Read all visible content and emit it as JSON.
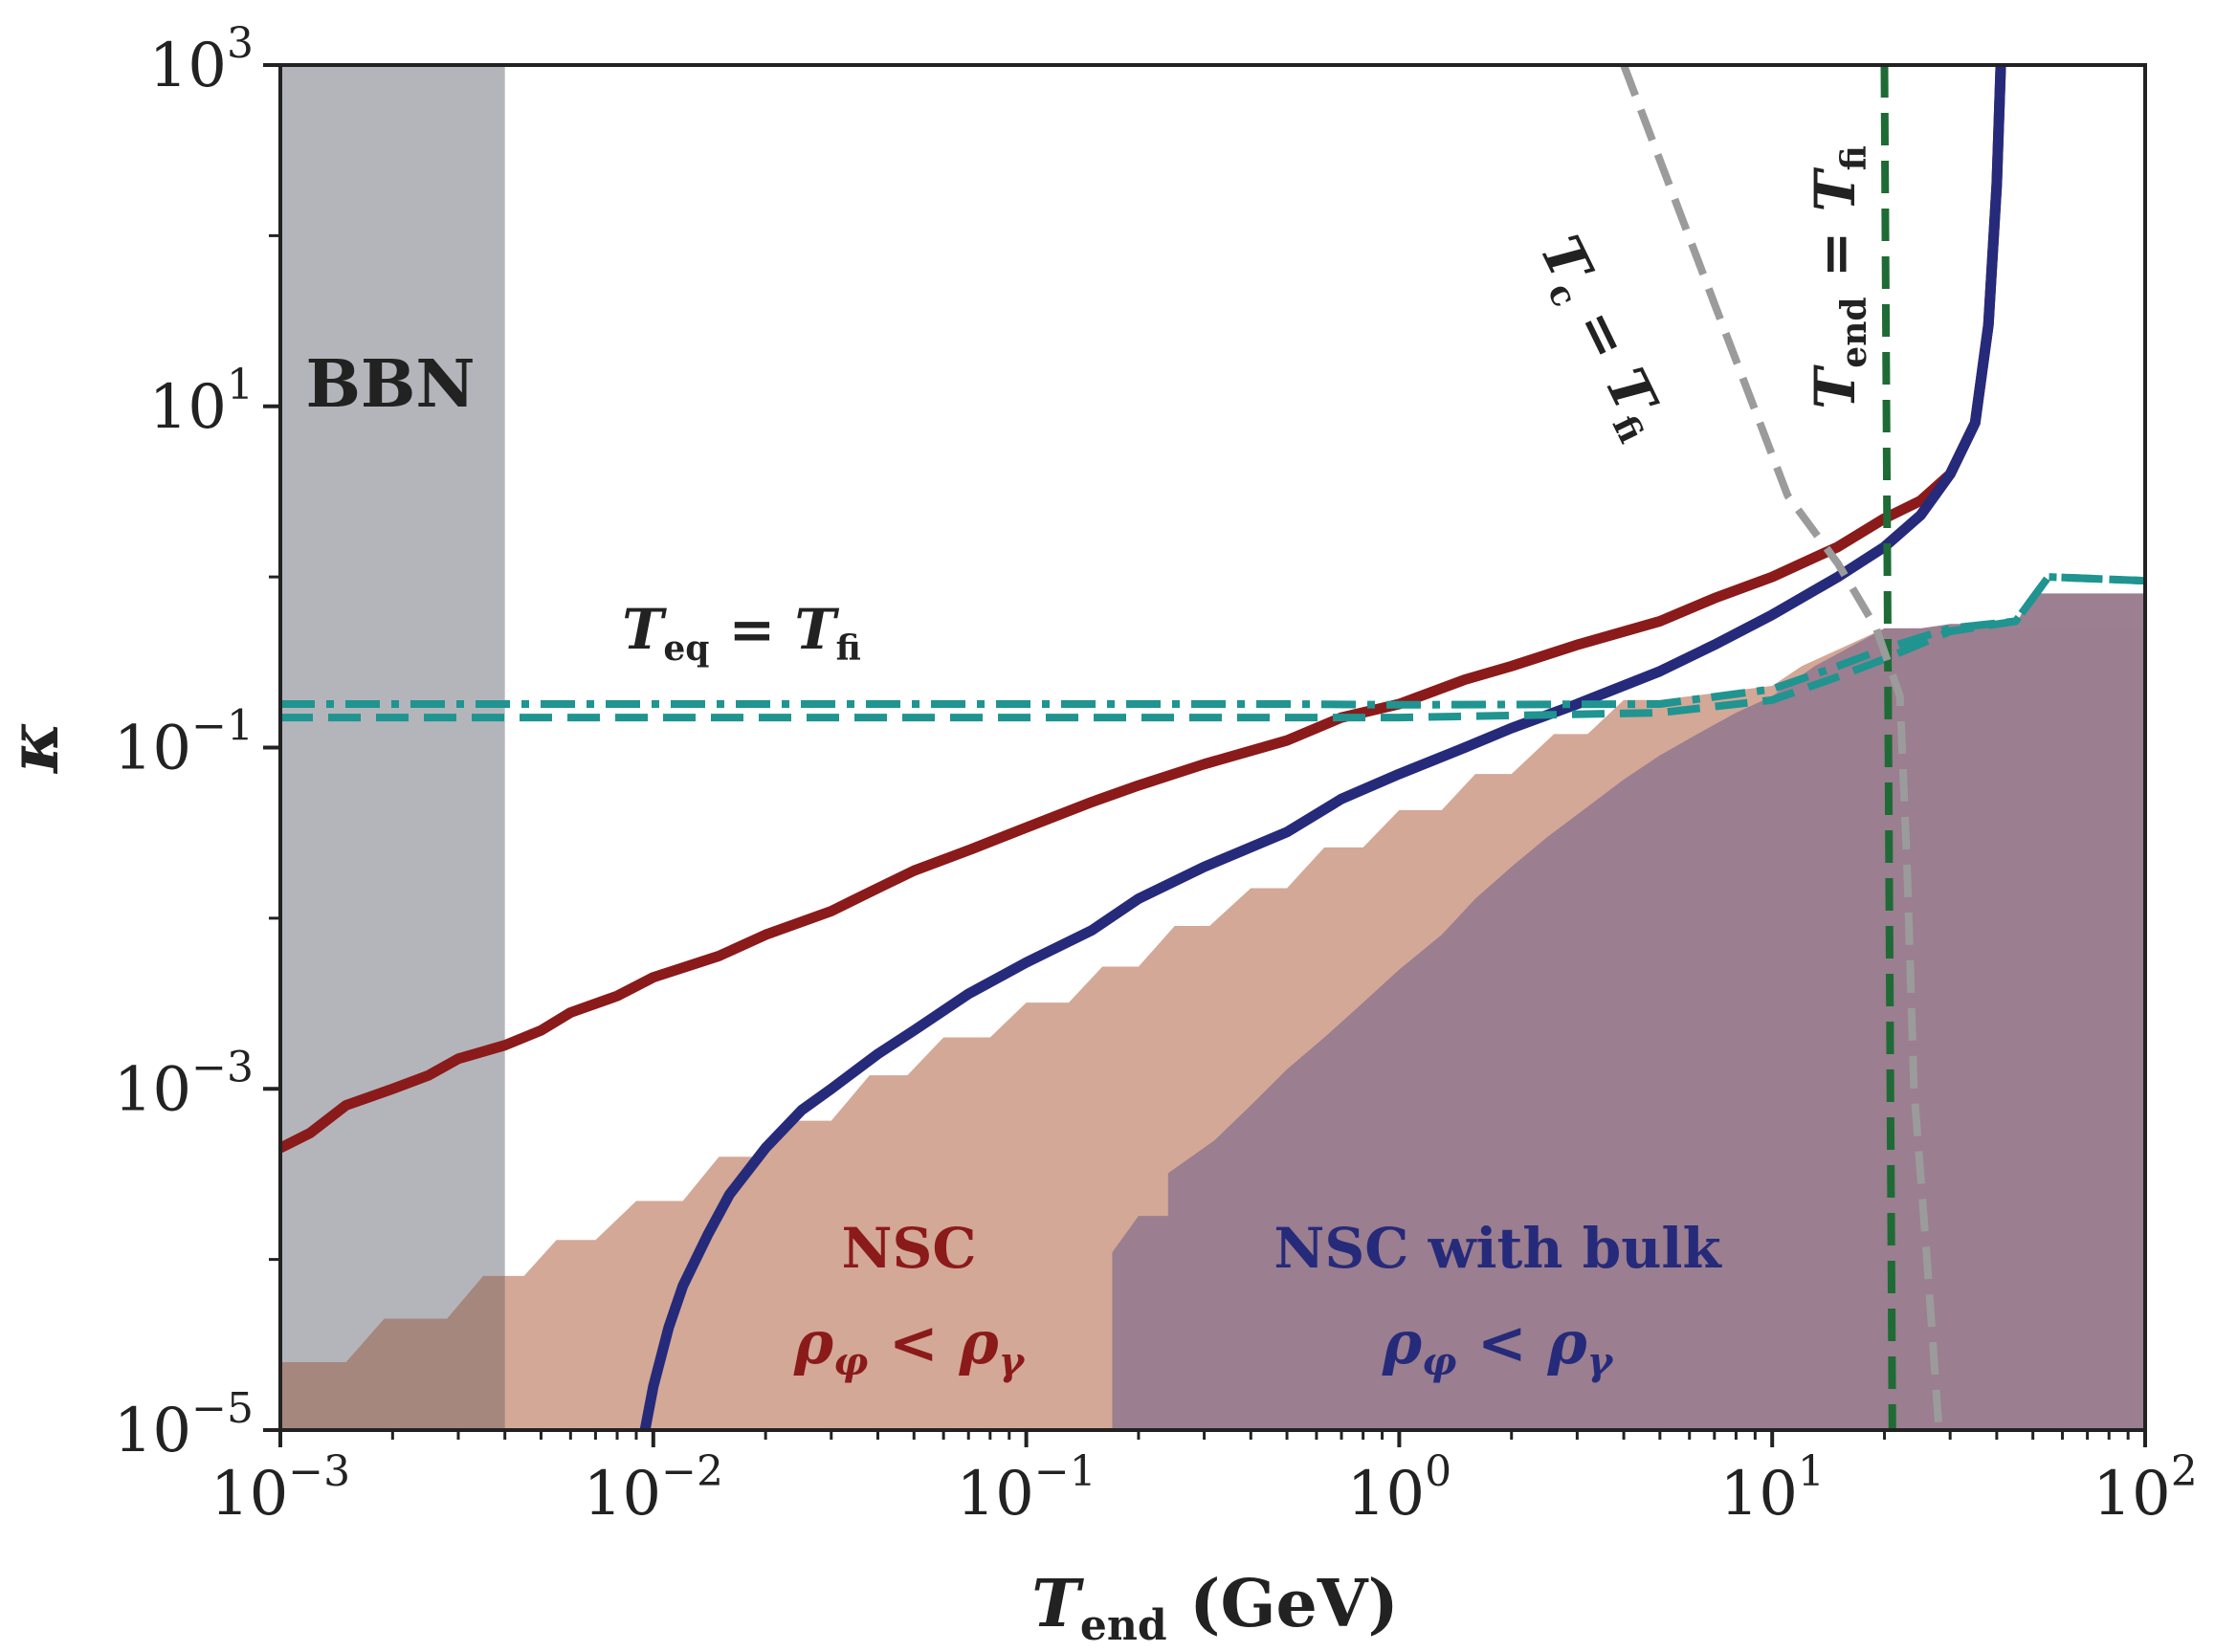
{
  "chart_data": {
    "type": "line",
    "title": "",
    "xlabel": "T_end (GeV)",
    "ylabel": "κ",
    "xscale": "log",
    "yscale": "log",
    "xlim": [
      0.001,
      100
    ],
    "ylim": [
      1e-05,
      1000
    ],
    "grid": false,
    "x_ticks": [
      {
        "base": "10",
        "exp": "−3"
      },
      {
        "base": "10",
        "exp": "−2"
      },
      {
        "base": "10",
        "exp": "−1"
      },
      {
        "base": "10",
        "exp": "0"
      },
      {
        "base": "10",
        "exp": "1"
      },
      {
        "base": "10",
        "exp": "2"
      }
    ],
    "y_ticks": [
      {
        "base": "10",
        "exp": "−5"
      },
      {
        "base": "10",
        "exp": "−3"
      },
      {
        "base": "10",
        "exp": "−1"
      },
      {
        "base": "10",
        "exp": "1"
      },
      {
        "base": "10",
        "exp": "3"
      }
    ],
    "regions": [
      {
        "name": "BBN",
        "label": "BBN",
        "x_range": [
          0.001,
          0.004
        ],
        "color": "#b3b5ba"
      },
      {
        "name": "NSC",
        "label": "NSC",
        "sublabel": "ρ_φ < ρ_γ",
        "color": "#d3a897",
        "boundary": [
          [
            0.001,
            2.5e-05
          ],
          [
            0.0015,
            2.5e-05
          ],
          [
            0.0019,
            4.5e-05
          ],
          [
            0.0028,
            4.5e-05
          ],
          [
            0.0035,
            8e-05
          ],
          [
            0.0045,
            8e-05
          ],
          [
            0.0055,
            0.00013
          ],
          [
            0.007,
            0.00013
          ],
          [
            0.009,
            0.00022
          ],
          [
            0.012,
            0.00022
          ],
          [
            0.015,
            0.0004
          ],
          [
            0.019,
            0.0004
          ],
          [
            0.024,
            0.00065
          ],
          [
            0.03,
            0.00065
          ],
          [
            0.038,
            0.0012
          ],
          [
            0.048,
            0.0012
          ],
          [
            0.06,
            0.002
          ],
          [
            0.08,
            0.002
          ],
          [
            0.1,
            0.0032
          ],
          [
            0.13,
            0.0032
          ],
          [
            0.16,
            0.0052
          ],
          [
            0.2,
            0.0052
          ],
          [
            0.25,
            0.009
          ],
          [
            0.31,
            0.009
          ],
          [
            0.4,
            0.015
          ],
          [
            0.5,
            0.015
          ],
          [
            0.63,
            0.026
          ],
          [
            0.8,
            0.026
          ],
          [
            1.0,
            0.043
          ],
          [
            1.3,
            0.043
          ],
          [
            1.6,
            0.07
          ],
          [
            2.0,
            0.07
          ],
          [
            2.6,
            0.12
          ],
          [
            3.2,
            0.12
          ],
          [
            4.0,
            0.19
          ],
          [
            5.0,
            0.19
          ],
          [
            10,
            0.23
          ],
          [
            12,
            0.3
          ],
          [
            20,
            0.5
          ],
          [
            25,
            0.5
          ],
          [
            100,
            0.5
          ]
        ]
      },
      {
        "name": "NSC with bulk",
        "label": "NSC with bulk",
        "sublabel": "ρ_φ < ρ_γ",
        "color": "#9a7d8f",
        "boundary": [
          [
            0.17,
            1e-05
          ],
          [
            0.17,
            0.00011
          ],
          [
            0.2,
            0.00018
          ],
          [
            0.24,
            0.00018
          ],
          [
            0.24,
            0.00032
          ],
          [
            0.32,
            0.0005
          ],
          [
            0.4,
            0.0008
          ],
          [
            0.5,
            0.0013
          ],
          [
            0.63,
            0.002
          ],
          [
            0.8,
            0.0032
          ],
          [
            1.0,
            0.005
          ],
          [
            1.3,
            0.008
          ],
          [
            1.6,
            0.013
          ],
          [
            2.0,
            0.02
          ],
          [
            2.5,
            0.03
          ],
          [
            3.2,
            0.045
          ],
          [
            4.0,
            0.065
          ],
          [
            5.0,
            0.09
          ],
          [
            6.3,
            0.12
          ],
          [
            8.0,
            0.16
          ],
          [
            10,
            0.2
          ],
          [
            13,
            0.3
          ],
          [
            20,
            0.5
          ],
          [
            25,
            0.5
          ],
          [
            30,
            0.53
          ],
          [
            45,
            0.53
          ],
          [
            50,
            0.8
          ],
          [
            100,
            0.8
          ]
        ]
      }
    ],
    "series": [
      {
        "name": "NSC",
        "color": "#8b1a1a",
        "style": "solid",
        "points": [
          [
            0.001,
            0.00045
          ],
          [
            0.0012,
            0.00055
          ],
          [
            0.0015,
            0.0008
          ],
          [
            0.002,
            0.001
          ],
          [
            0.0025,
            0.0012
          ],
          [
            0.003,
            0.0015
          ],
          [
            0.004,
            0.0018
          ],
          [
            0.005,
            0.0022
          ],
          [
            0.006,
            0.0028
          ],
          [
            0.008,
            0.0035
          ],
          [
            0.01,
            0.0045
          ],
          [
            0.015,
            0.006
          ],
          [
            0.02,
            0.008
          ],
          [
            0.03,
            0.011
          ],
          [
            0.04,
            0.015
          ],
          [
            0.05,
            0.019
          ],
          [
            0.07,
            0.025
          ],
          [
            0.1,
            0.034
          ],
          [
            0.15,
            0.048
          ],
          [
            0.2,
            0.06
          ],
          [
            0.3,
            0.08
          ],
          [
            0.5,
            0.11
          ],
          [
            0.7,
            0.15
          ],
          [
            1.0,
            0.18
          ],
          [
            1.5,
            0.25
          ],
          [
            2.0,
            0.3
          ],
          [
            3.0,
            0.4
          ],
          [
            5.0,
            0.55
          ],
          [
            7.0,
            0.75
          ],
          [
            10,
            1.0
          ],
          [
            15,
            1.5
          ],
          [
            20,
            2.2
          ],
          [
            25,
            2.8
          ],
          [
            30,
            4
          ],
          [
            35,
            8
          ],
          [
            38,
            30
          ],
          [
            40,
            200
          ],
          [
            41,
            1000
          ]
        ]
      },
      {
        "name": "NSC with bulk",
        "color": "#262a7a",
        "style": "solid",
        "points": [
          [
            0.0095,
            1e-05
          ],
          [
            0.01,
            1.8e-05
          ],
          [
            0.011,
            4e-05
          ],
          [
            0.012,
            7e-05
          ],
          [
            0.014,
            0.00014
          ],
          [
            0.016,
            0.00024
          ],
          [
            0.02,
            0.00045
          ],
          [
            0.025,
            0.00075
          ],
          [
            0.03,
            0.001
          ],
          [
            0.04,
            0.0016
          ],
          [
            0.05,
            0.0022
          ],
          [
            0.07,
            0.0036
          ],
          [
            0.1,
            0.0055
          ],
          [
            0.15,
            0.0085
          ],
          [
            0.2,
            0.013
          ],
          [
            0.3,
            0.02
          ],
          [
            0.5,
            0.032
          ],
          [
            0.7,
            0.05
          ],
          [
            1.0,
            0.07
          ],
          [
            1.5,
            0.1
          ],
          [
            2.0,
            0.13
          ],
          [
            3.0,
            0.18
          ],
          [
            5.0,
            0.28
          ],
          [
            7.0,
            0.4
          ],
          [
            10,
            0.6
          ],
          [
            15,
            1.0
          ],
          [
            20,
            1.5
          ],
          [
            25,
            2.3
          ],
          [
            30,
            4
          ],
          [
            35,
            8
          ],
          [
            38,
            30
          ],
          [
            40,
            200
          ],
          [
            41,
            1000
          ]
        ]
      },
      {
        "name": "T_eq = T_fi (dash-dot)",
        "color": "#1f9490",
        "style": "dashdot",
        "points": [
          [
            0.001,
            0.18
          ],
          [
            0.5,
            0.18
          ],
          [
            1,
            0.178
          ],
          [
            5,
            0.18
          ],
          [
            10,
            0.22
          ],
          [
            15,
            0.3
          ],
          [
            20,
            0.38
          ],
          [
            30,
            0.5
          ],
          [
            45,
            0.55
          ],
          [
            55,
            1.0
          ],
          [
            100,
            0.95
          ]
        ]
      },
      {
        "name": "T_eq = T_fi (dashed)",
        "color": "#1f9490",
        "style": "dashed",
        "points": [
          [
            0.001,
            0.15
          ],
          [
            0.5,
            0.15
          ],
          [
            1,
            0.15
          ],
          [
            5,
            0.16
          ],
          [
            10,
            0.19
          ],
          [
            15,
            0.26
          ],
          [
            20,
            0.33
          ],
          [
            30,
            0.48
          ],
          [
            45,
            0.55
          ],
          [
            55,
            1.0
          ],
          [
            100,
            0.95
          ]
        ]
      },
      {
        "name": "T_end = T_fi",
        "color": "#1e6b35",
        "style": "dashed",
        "points": [
          [
            20,
            1000
          ],
          [
            21,
            1e-05
          ]
        ]
      },
      {
        "name": "T_c = T_fi",
        "color": "#9b9b9b",
        "style": "dashed",
        "points": [
          [
            4,
            1000
          ],
          [
            7,
            40
          ],
          [
            11,
            3
          ],
          [
            15,
            1.2
          ],
          [
            19,
            0.5
          ],
          [
            22,
            0.2
          ],
          [
            23,
            0.02
          ],
          [
            24,
            0.001
          ],
          [
            26,
            0.0001
          ],
          [
            28,
            1e-05
          ]
        ]
      }
    ],
    "annotations": [
      {
        "name": "teq-equals-tfi",
        "text": "T_eq = T_fi",
        "color": "#222222"
      },
      {
        "name": "tc-equals-tfi",
        "text": "T_c = T_fi",
        "color": "#222222"
      },
      {
        "name": "tend-equals-tfi",
        "text": "T_end = T_fi",
        "color": "#222222"
      },
      {
        "name": "bbn-label",
        "text": "BBN",
        "color": "#222222"
      },
      {
        "name": "nsc-label",
        "text": "NSC",
        "color": "#8b1a1a"
      },
      {
        "name": "nsc-ineq",
        "text": "ρ_φ < ρ_γ",
        "color": "#8b1a1a"
      },
      {
        "name": "nsc-bulk-label",
        "text": "NSC with bulk",
        "color": "#262a7a"
      },
      {
        "name": "nsc-bulk-ineq",
        "text": "ρ_φ < ρ_γ",
        "color": "#262a7a"
      }
    ]
  }
}
